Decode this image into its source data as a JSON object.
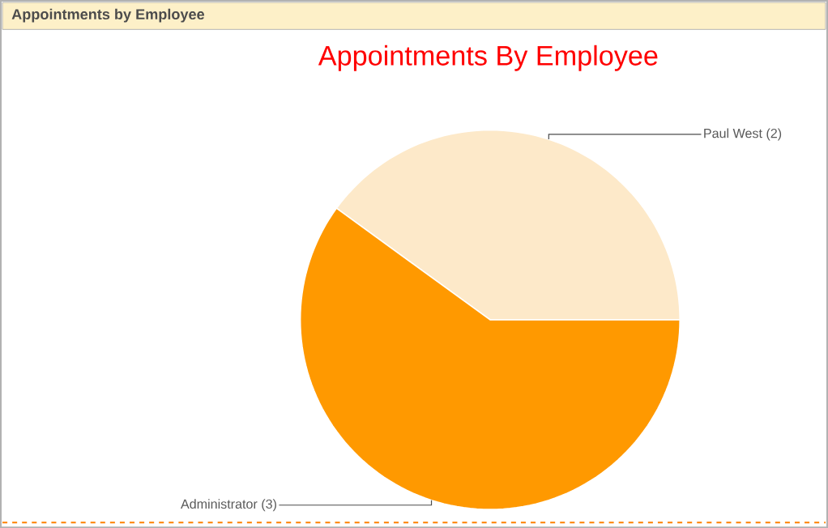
{
  "chart_data": {
    "type": "pie",
    "title": "Appointments By Employee",
    "annotations": [
      "Appointments by Employee"
    ],
    "categories": [
      "Paul West",
      "Administrator"
    ],
    "values": [
      2,
      3
    ],
    "colors": [
      "#fde9c9",
      "#ff9900"
    ],
    "value_labels": [
      "(2)",
      "(3)"
    ]
  }
}
